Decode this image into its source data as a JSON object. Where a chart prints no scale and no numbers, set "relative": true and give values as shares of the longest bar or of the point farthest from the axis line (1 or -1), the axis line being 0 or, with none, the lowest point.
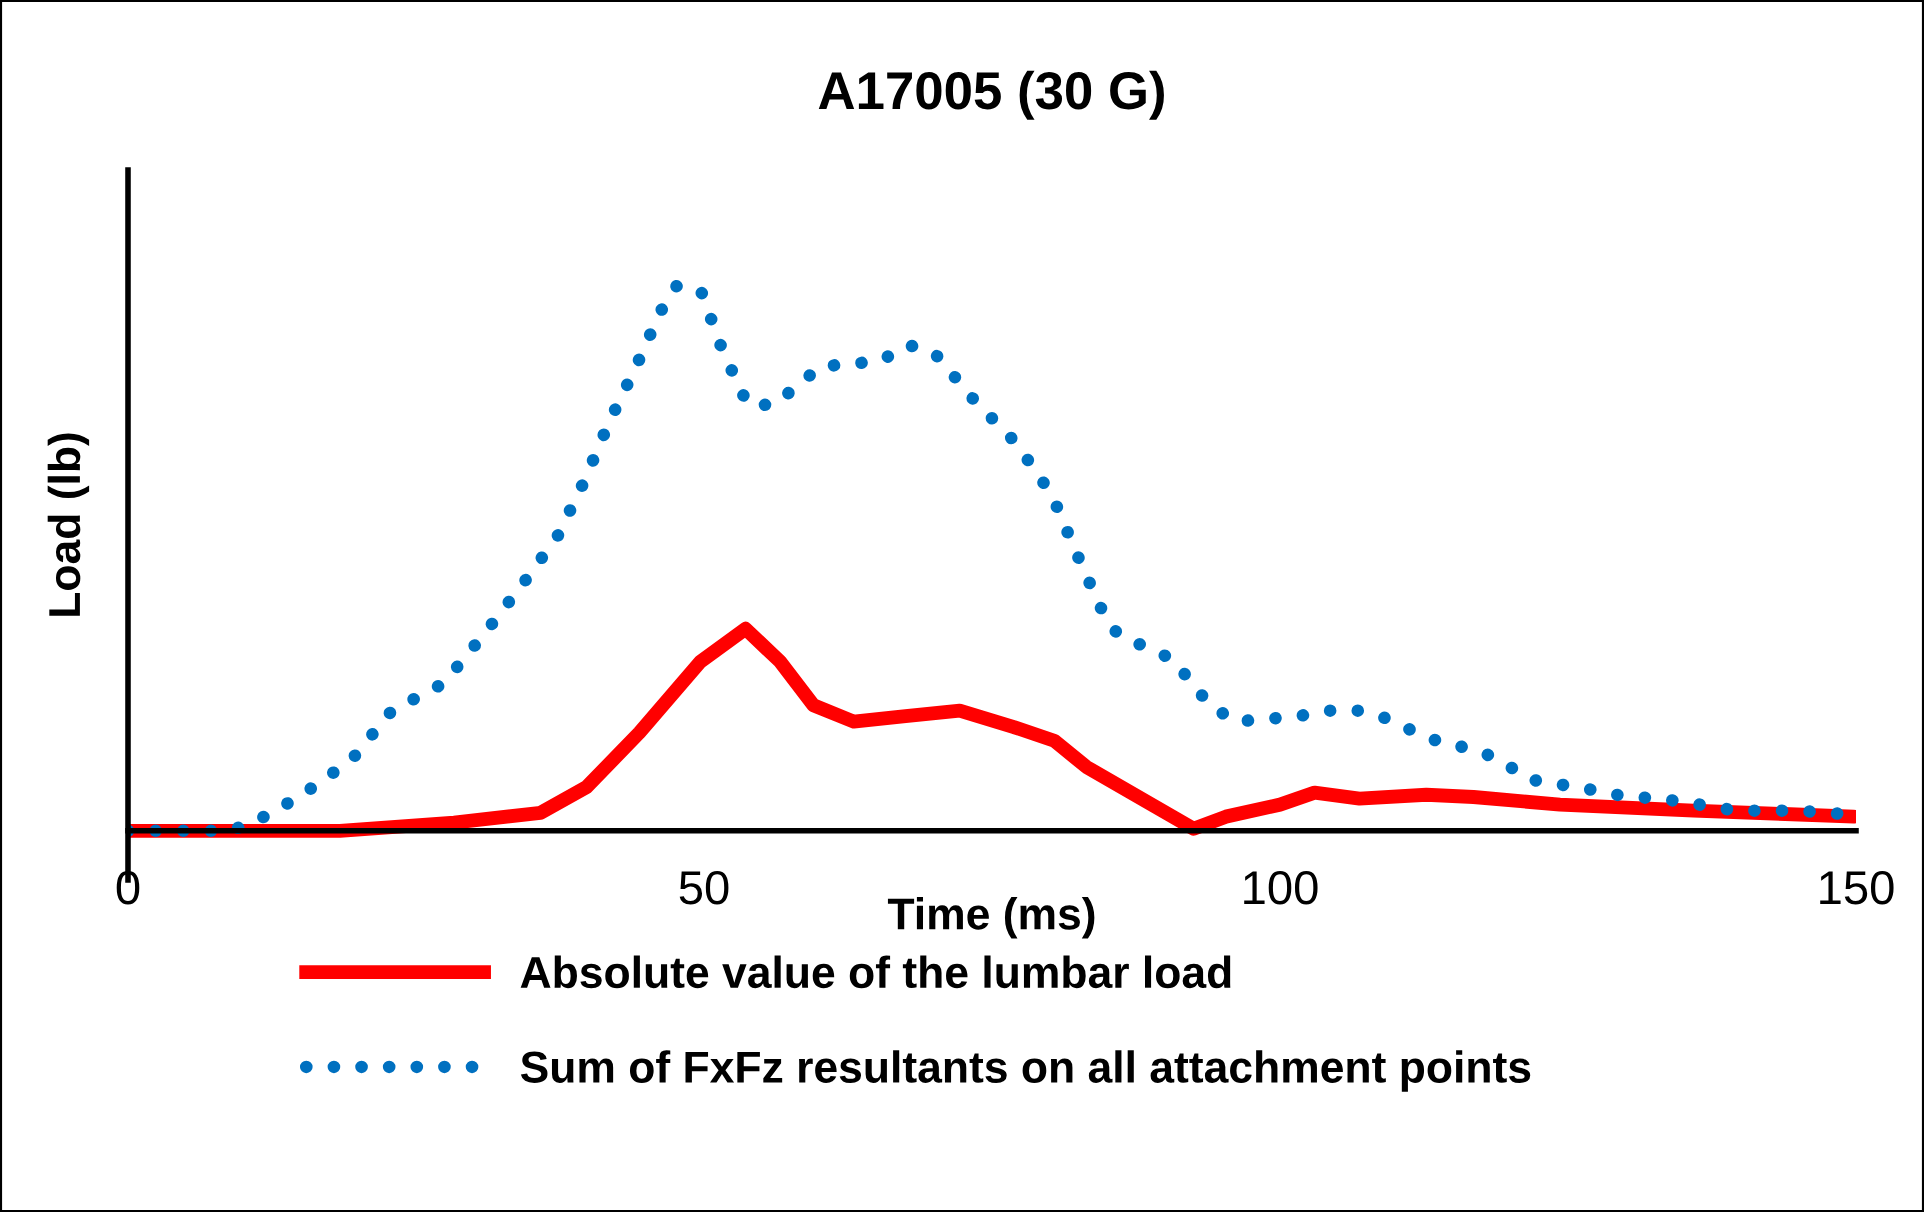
{
  "chart_data": {
    "type": "line",
    "title": "A17005 (30 G)",
    "xlabel": "Time (ms)",
    "ylabel": "Load (lb)",
    "relative": true,
    "xlim": [
      0,
      150
    ],
    "xticks": [
      0,
      50,
      100,
      150
    ],
    "tick_labels": "x",
    "grid": false,
    "legend": "bottom",
    "marker": "none",
    "series": [
      {
        "name": "Absolute value of the lumbar load",
        "color": "#ff0000",
        "line_style": "solid",
        "x": [
          0,
          18.4,
          28.3,
          35.8,
          39.8,
          44.4,
          49.7,
          53.6,
          56.6,
          59.5,
          63.0,
          67.5,
          72.2,
          76.9,
          80.4,
          83.2,
          92.5,
          95.3,
          100,
          103,
          106.9,
          112.7,
          116.8,
          124.3,
          135.9,
          149.8
        ],
        "values": [
          0,
          0,
          0.015,
          0.033,
          0.08,
          0.18,
          0.31,
          0.37,
          0.31,
          0.23,
          0.2,
          0.21,
          0.22,
          0.19,
          0.165,
          0.117,
          0.004,
          0.026,
          0.048,
          0.07,
          0.059,
          0.066,
          0.062,
          0.048,
          0.037,
          0.026
        ]
      },
      {
        "name": "Sum of FxFz resultants on all attachment points",
        "color": "#0070c0",
        "line_style": "dotted",
        "x": [
          0,
          8.5,
          10.4,
          12.8,
          15.1,
          19.4,
          22.9,
          27.4,
          30.9,
          34.2,
          37.3,
          39.6,
          41.8,
          44.1,
          46.2,
          47.7,
          49.8,
          51.6,
          53.8,
          56.1,
          60.1,
          65.3,
          67.7,
          70.0,
          73.4,
          77.1,
          80.2,
          82.3,
          84.4,
          85.9,
          90.6,
          92.4,
          93.9,
          96.2,
          101.6,
          104.2,
          106.8,
          109.4,
          111.8,
          114.2,
          116.8,
          119.3,
          121.4,
          126.6,
          129.2,
          134.4,
          139.6,
          145,
          150
        ],
        "values": [
          0,
          0,
          0.01,
          0.037,
          0.066,
          0.13,
          0.22,
          0.27,
          0.36,
          0.45,
          0.54,
          0.64,
          0.75,
          0.85,
          0.95,
          1.0,
          0.985,
          0.88,
          0.78,
          0.78,
          0.85,
          0.86,
          0.89,
          0.875,
          0.79,
          0.71,
          0.615,
          0.51,
          0.41,
          0.36,
          0.315,
          0.27,
          0.23,
          0.2,
          0.21,
          0.22,
          0.22,
          0.205,
          0.18,
          0.16,
          0.15,
          0.128,
          0.095,
          0.077,
          0.066,
          0.055,
          0.037,
          0.037,
          0.029
        ]
      }
    ]
  }
}
